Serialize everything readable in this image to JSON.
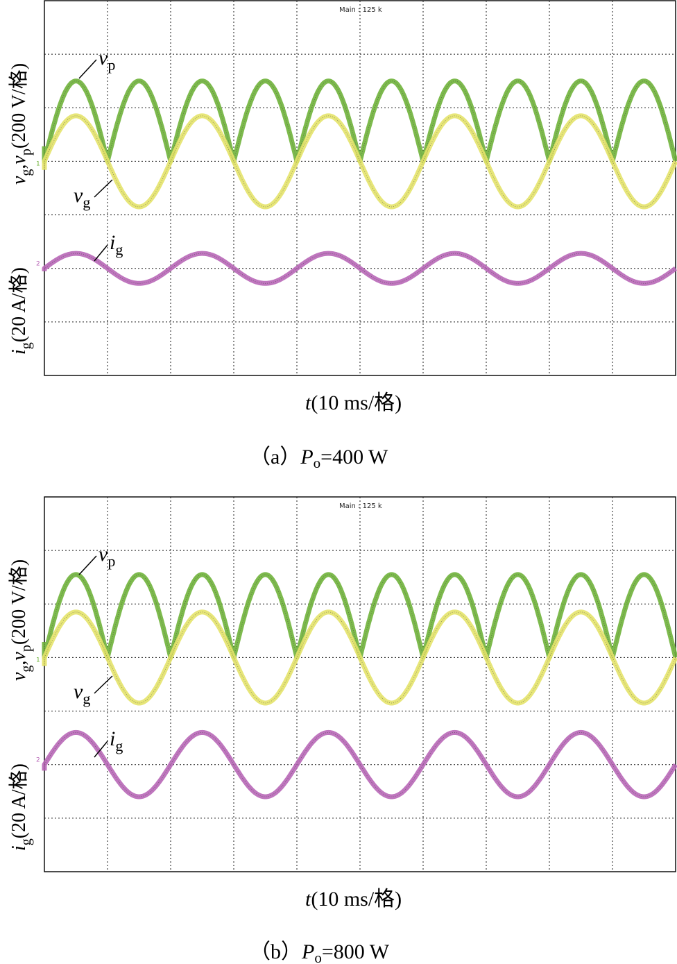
{
  "chart_data": [
    {
      "type": "line",
      "panel": "a",
      "caption": {
        "prefix": "（a）",
        "symbol": "P",
        "subscript": "o",
        "suffix": "=400 W"
      },
      "scope_header": "Main : 125 k",
      "xlabel": {
        "symbol": "t",
        "text": "(10 ms/格)"
      },
      "ylabel_upper": {
        "v1": "v",
        "s1": "g",
        "sep": ",",
        "v2": "v",
        "s2": "p",
        "unit": "(200 V/格)"
      },
      "ylabel_lower": {
        "v": "i",
        "s": "g",
        "unit": "(20 A/格)"
      },
      "grid": {
        "divisions_x": 10,
        "divisions_y": 6
      },
      "x_range_ms": [
        0,
        100
      ],
      "series": [
        {
          "name": "vp",
          "label_main": "v",
          "label_sub": "p",
          "kind": "rectified_sine",
          "period_ms": 10,
          "amplitude_div": 1.5,
          "offset_div": 0,
          "color": "#6fb33a"
        },
        {
          "name": "vg",
          "label_main": "v",
          "label_sub": "g",
          "kind": "sine",
          "period_ms": 20,
          "amplitude_div": 0.85,
          "offset_div": 0,
          "color": "#e4e36a"
        },
        {
          "name": "ig",
          "label_main": "i",
          "label_sub": "g",
          "kind": "sine",
          "period_ms": 20,
          "amplitude_div": 0.28,
          "offset_div": -2,
          "color": "#b867b7"
        }
      ],
      "ground_markers": [
        "1",
        "2"
      ]
    },
    {
      "type": "line",
      "panel": "b",
      "caption": {
        "prefix": "（b）",
        "symbol": "P",
        "subscript": "o",
        "suffix": "=800 W"
      },
      "scope_header": "Main : 125 k",
      "xlabel": {
        "symbol": "t",
        "text": "(10 ms/格)"
      },
      "ylabel_upper": {
        "v1": "v",
        "s1": "g",
        "sep": ",",
        "v2": "v",
        "s2": "p",
        "unit": "(200 V/格)"
      },
      "ylabel_lower": {
        "v": "i",
        "s": "g",
        "unit": "(20 A/格)"
      },
      "grid": {
        "divisions_x": 10,
        "divisions_y": 6
      },
      "x_range_ms": [
        0,
        100
      ],
      "series": [
        {
          "name": "vp",
          "label_main": "v",
          "label_sub": "p",
          "kind": "rectified_sine",
          "period_ms": 10,
          "amplitude_div": 1.55,
          "offset_div": 0,
          "color": "#6fb33a"
        },
        {
          "name": "vg",
          "label_main": "v",
          "label_sub": "g",
          "kind": "sine",
          "period_ms": 20,
          "amplitude_div": 0.85,
          "offset_div": 0,
          "color": "#e4e36a"
        },
        {
          "name": "ig",
          "label_main": "i",
          "label_sub": "g",
          "kind": "sine",
          "period_ms": 20,
          "amplitude_div": 0.6,
          "offset_div": -2,
          "color": "#b867b7"
        }
      ],
      "ground_markers": [
        "1",
        "2"
      ]
    }
  ]
}
